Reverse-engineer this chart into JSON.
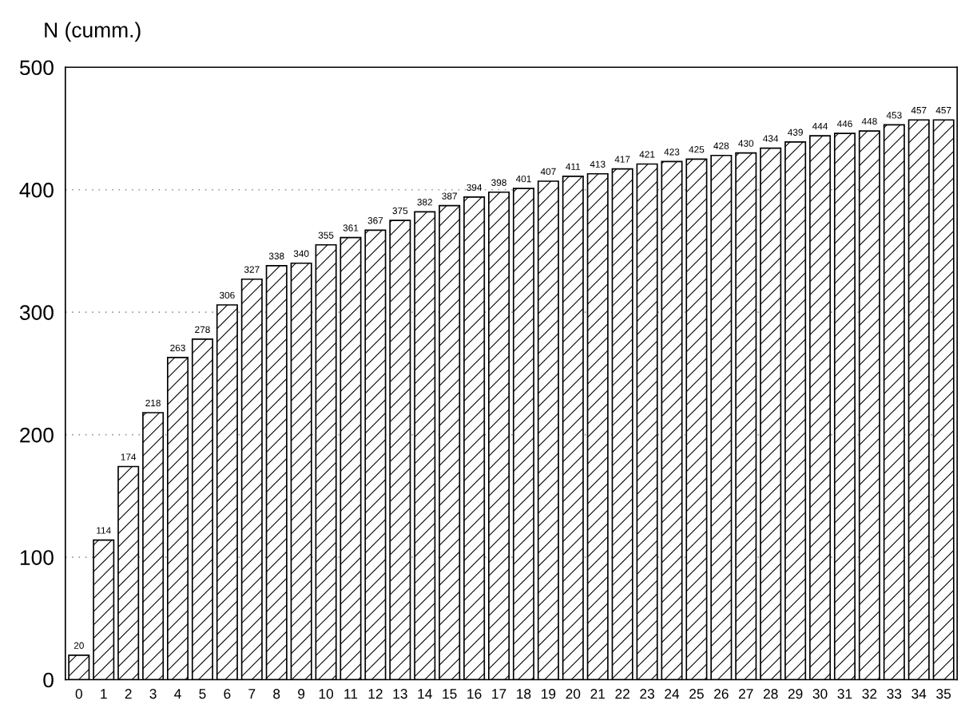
{
  "chart_data": {
    "type": "bar",
    "ylabel": "N (cumm.)",
    "categories": [
      "0",
      "1",
      "2",
      "3",
      "4",
      "5",
      "6",
      "7",
      "8",
      "9",
      "10",
      "11",
      "12",
      "13",
      "14",
      "15",
      "16",
      "17",
      "18",
      "19",
      "20",
      "21",
      "22",
      "23",
      "24",
      "25",
      "26",
      "27",
      "28",
      "29",
      "30",
      "31",
      "32",
      "33",
      "34",
      "35"
    ],
    "values": [
      20,
      114,
      174,
      218,
      263,
      278,
      306,
      327,
      338,
      340,
      355,
      361,
      367,
      375,
      382,
      387,
      394,
      398,
      401,
      407,
      411,
      413,
      417,
      421,
      423,
      425,
      428,
      430,
      434,
      439,
      444,
      446,
      448,
      453,
      457,
      457
    ],
    "color": "#000000",
    "ylim": [
      0,
      500
    ],
    "yticks": [
      0,
      100,
      200,
      300,
      400,
      500
    ],
    "grid": "y",
    "data_labels": true
  }
}
